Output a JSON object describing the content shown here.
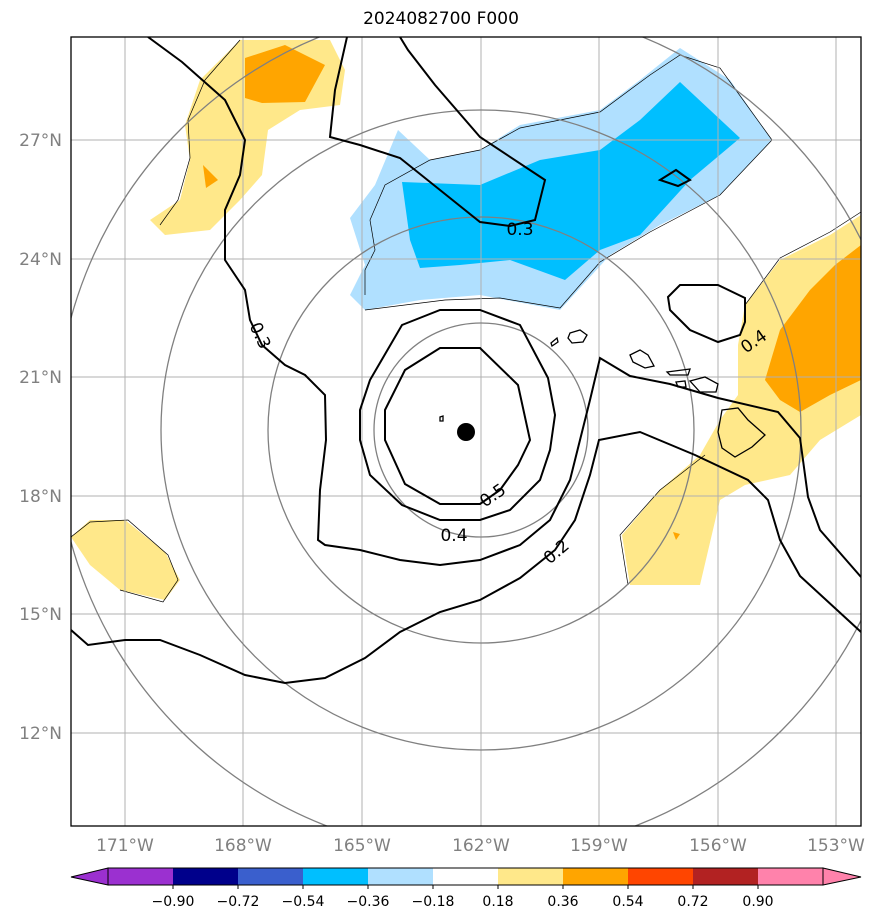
{
  "title": "2024082700 F000",
  "map": {
    "lon_labels": [
      "171°W",
      "168°W",
      "165°W",
      "162°W",
      "159°W",
      "156°W",
      "153°W"
    ],
    "lat_labels": [
      "27°N",
      "24°N",
      "21°N",
      "18°N",
      "15°N",
      "12°N"
    ],
    "contour_labels": [
      "0.3",
      "0.3",
      "0.4",
      "0.5",
      "0.4",
      "0.2"
    ],
    "storm_center": {
      "lon": -162.4,
      "lat": 19.6
    },
    "colors": {
      "grid": "#b0b0b0",
      "range_rings": "#808080",
      "light_blue": "#b0e0ff",
      "blue": "#00bfff",
      "yellow": "#ffe88a",
      "orange": "#ffa500"
    }
  },
  "colorbar": {
    "labels": [
      "−0.90",
      "−0.72",
      "−0.54",
      "−0.36",
      "−0.18",
      "0.18",
      "0.36",
      "0.54",
      "0.72",
      "0.90"
    ],
    "colors": [
      "#9b30d0",
      "#00008b",
      "#3a5fcd",
      "#00bfff",
      "#b0e0ff",
      "#ffffff",
      "#ffe88a",
      "#ffa500",
      "#ff4500",
      "#b22222",
      "#ff82ab"
    ]
  }
}
